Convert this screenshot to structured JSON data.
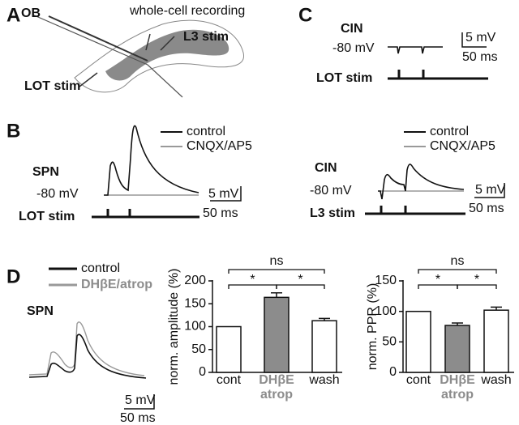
{
  "panel_a": {
    "letter": "A",
    "ob": "OB",
    "title": "whole-cell recording",
    "l3_stim": "L3 stim",
    "lot_stim": "LOT stim"
  },
  "panel_c": {
    "letter": "C",
    "cell": "CIN",
    "potential": "-80 mV",
    "scale_v": "5 mV",
    "scale_t": "50 ms",
    "stim": "LOT stim"
  },
  "panel_b": {
    "letter": "B",
    "left": {
      "legend": [
        "control",
        "CNQX/AP5"
      ],
      "cell": "SPN",
      "potential": "-80 mV",
      "scale_v": "5 mV",
      "scale_t": "50 ms",
      "stim": "LOT stim"
    },
    "right": {
      "legend": [
        "control",
        "CNQX/AP5"
      ],
      "cell": "CIN",
      "potential": "-80 mV",
      "scale_v": "5 mV",
      "scale_t": "50 ms",
      "stim": "L3 stim"
    }
  },
  "panel_d": {
    "letter": "D",
    "legend": [
      "control",
      "DHβE/atrop"
    ],
    "cell": "SPN",
    "scale_v": "5 mV",
    "scale_t": "50 ms"
  },
  "chart_data": [
    {
      "type": "bar",
      "y_label": "norm. amplitude (%)",
      "categories": [
        "cont",
        [
          "DHβE",
          "atrop"
        ],
        "wash"
      ],
      "values": [
        100,
        164,
        113
      ],
      "errors": [
        null,
        10,
        5
      ],
      "colors": [
        "#ffffff",
        "#8c8c8c",
        "#ffffff"
      ],
      "ylim": [
        0,
        200
      ],
      "yticks": [
        0,
        50,
        100,
        150,
        200
      ],
      "comparisons": [
        {
          "label": "ns",
          "pair": [
            0,
            2
          ]
        },
        {
          "label": "*",
          "pair": [
            0,
            1
          ]
        },
        {
          "label": "*",
          "pair": [
            1,
            2
          ]
        }
      ]
    },
    {
      "type": "bar",
      "y_label": "norm. PPR (%)",
      "categories": [
        "cont",
        [
          "DHβE",
          "atrop"
        ],
        "wash"
      ],
      "values": [
        100,
        77,
        102
      ],
      "errors": [
        null,
        4,
        5
      ],
      "colors": [
        "#ffffff",
        "#8c8c8c",
        "#ffffff"
      ],
      "ylim": [
        0,
        150
      ],
      "yticks": [
        0,
        50,
        100,
        150
      ],
      "comparisons": [
        {
          "label": "ns",
          "pair": [
            0,
            2
          ]
        },
        {
          "label": "*",
          "pair": [
            0,
            1
          ]
        },
        {
          "label": "*",
          "pair": [
            1,
            2
          ]
        }
      ]
    }
  ]
}
